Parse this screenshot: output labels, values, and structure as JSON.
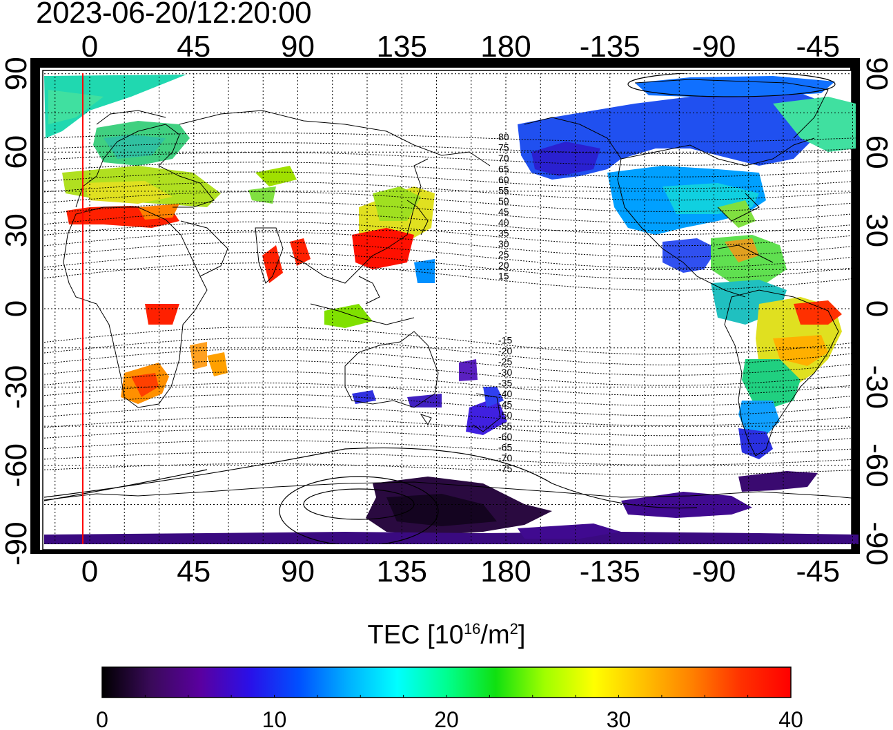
{
  "timestamp": "2023-06-20/12:20:00",
  "map": {
    "top_lon_labels": [
      "0",
      "45",
      "90",
      "135",
      "180",
      "-135",
      "-90",
      "-45"
    ],
    "bottom_lon_labels": [
      "0",
      "45",
      "90",
      "135",
      "180",
      "-135",
      "-90",
      "-45"
    ],
    "left_lat_labels": [
      "90",
      "60",
      "30",
      "0",
      "-30",
      "-60",
      "-90"
    ],
    "right_lat_labels": [
      "90",
      "60",
      "30",
      "0",
      "-30",
      "-60",
      "-90"
    ],
    "magnetic_latitude_labels": [
      "80",
      "75",
      "70",
      "65",
      "60",
      "55",
      "50",
      "45",
      "40",
      "35",
      "30",
      "25",
      "20",
      "15",
      "-15",
      "-20",
      "-25",
      "-30",
      "-35",
      "-40",
      "-45",
      "-50",
      "-55",
      "-60",
      "-65",
      "-70",
      "-75"
    ],
    "red_line_longitude": -3
  },
  "colorbar": {
    "title_main": "TEC  [10",
    "title_sup1": "16",
    "title_mid": "/m",
    "title_sup2": "2",
    "title_end": "]",
    "min": 0,
    "max": 40,
    "tick_labels": [
      "0",
      "10",
      "20",
      "30",
      "40"
    ],
    "colors": [
      "#000000",
      "#3a0a5a",
      "#5a00a0",
      "#2a10e8",
      "#0050ff",
      "#00b0ff",
      "#00ffff",
      "#00ff90",
      "#10e010",
      "#a0ff00",
      "#ffff00",
      "#ffc000",
      "#ff8000",
      "#ff3000",
      "#ff0000"
    ]
  },
  "colors": {
    "coastline": "#000000",
    "grid": "#000000",
    "red_line": "#ff0000",
    "frame": "#000000"
  }
}
